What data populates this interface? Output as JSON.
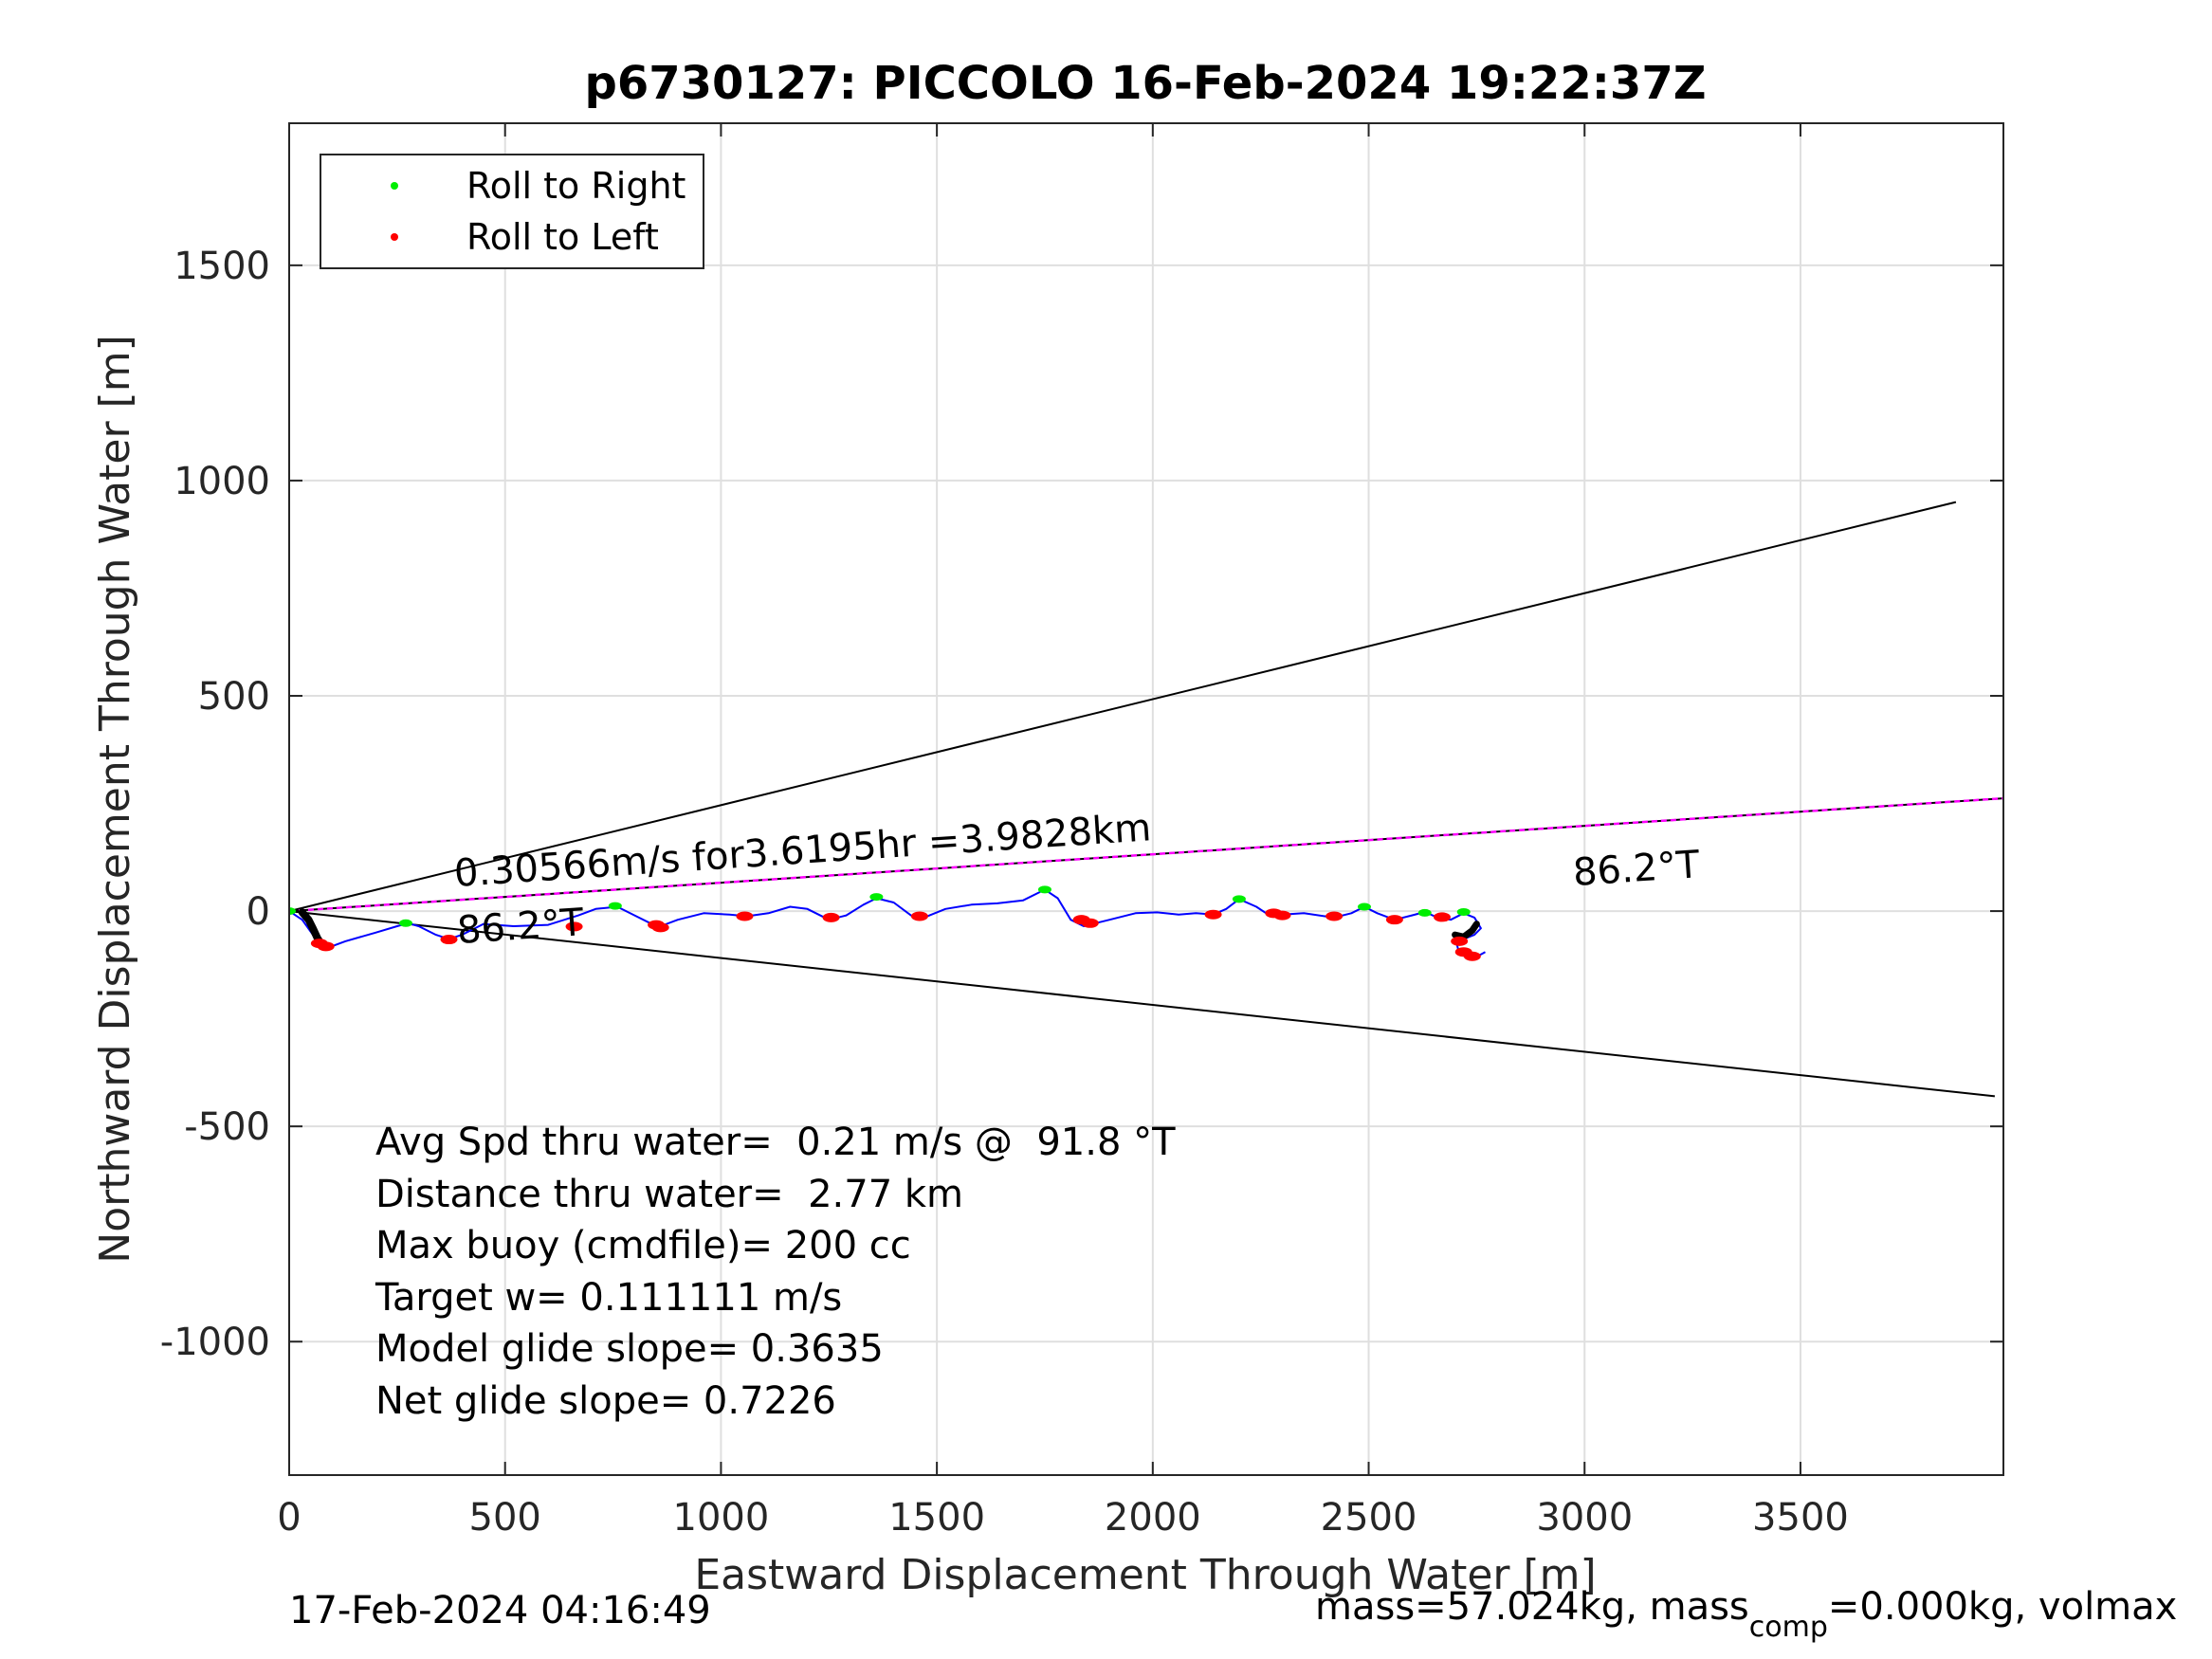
{
  "chart_data": {
    "type": "line",
    "title": "p6730127: PICCOLO 16-Feb-2024 19:22:37Z",
    "xlabel": "Eastward Displacement Through Water [m]",
    "ylabel": "Northward Displacement Through Water [m]",
    "xlim": [
      0,
      3970
    ],
    "ylim": [
      -1310,
      1830
    ],
    "xticks": [
      0,
      500,
      1000,
      1500,
      2000,
      2500,
      3000,
      3500
    ],
    "yticks": [
      1500,
      1000,
      500,
      0,
      -500,
      -1000
    ],
    "grid": true,
    "legend_position": "top-left",
    "colors": {
      "track": "#0000ff",
      "roll_right": "#00ee00",
      "roll_left": "#ff0000",
      "bearing_line": "#ff00ff",
      "cone": "#000000",
      "thick_segment": "#000000"
    },
    "legend": [
      {
        "label": "Roll to Right",
        "color": "#00ee00"
      },
      {
        "label": "Roll to Left",
        "color": "#ff0000"
      }
    ],
    "track": {
      "x": [
        0,
        30,
        55,
        75,
        90,
        130,
        200,
        250,
        275,
        300,
        340,
        370,
        400,
        450,
        520,
        600,
        670,
        710,
        760,
        800,
        840,
        860,
        900,
        960,
        1020,
        1060,
        1110,
        1160,
        1200,
        1250,
        1290,
        1330,
        1360,
        1400,
        1440,
        1470,
        1520,
        1580,
        1640,
        1700,
        1750,
        1780,
        1810,
        1840,
        1860,
        1900,
        1960,
        2010,
        2060,
        2100,
        2140,
        2170,
        2200,
        2240,
        2270,
        2300,
        2350,
        2420,
        2460,
        2490,
        2520,
        2560,
        2600,
        2630,
        2660,
        2690,
        2720,
        2745,
        2760,
        2745,
        2720,
        2705,
        2710,
        2730,
        2752,
        2770
      ],
      "y": [
        0,
        -20,
        -55,
        -78,
        -85,
        -70,
        -50,
        -35,
        -28,
        -35,
        -55,
        -65,
        -55,
        -30,
        -35,
        -32,
        -10,
        5,
        10,
        -10,
        -30,
        -35,
        -20,
        -5,
        -8,
        -12,
        -5,
        10,
        5,
        -20,
        -10,
        15,
        30,
        20,
        -10,
        -15,
        5,
        15,
        18,
        25,
        50,
        30,
        -20,
        -35,
        -30,
        -20,
        -5,
        -3,
        -8,
        -5,
        -8,
        5,
        28,
        10,
        -10,
        -8,
        -5,
        -15,
        -5,
        10,
        -5,
        -20,
        -10,
        -2,
        -15,
        -20,
        -5,
        -15,
        -40,
        -55,
        -65,
        -80,
        -100,
        -108,
        -105,
        -95
      ]
    },
    "roll_right": {
      "x": [
        0,
        270,
        755,
        1360,
        1750,
        2200,
        2490,
        2630,
        2720
      ],
      "y": [
        0,
        -28,
        12,
        33,
        50,
        28,
        10,
        -4,
        -2
      ]
    },
    "roll_left": {
      "x": [
        70,
        85,
        370,
        660,
        850,
        860,
        1055,
        1255,
        1460,
        1835,
        1855,
        2140,
        2280,
        2300,
        2420,
        2560,
        2670,
        2710,
        2720,
        2740
      ],
      "y": [
        -75,
        -82,
        -66,
        -36,
        -32,
        -38,
        -12,
        -15,
        -12,
        -20,
        -28,
        -8,
        -5,
        -10,
        -12,
        -20,
        -14,
        -70,
        -95,
        -105
      ]
    },
    "thick_segment": {
      "x": [
        30,
        45,
        55,
        65,
        75
      ],
      "y": [
        -3,
        -20,
        -40,
        -62,
        -78
      ]
    },
    "thick_segment_end": {
      "x": [
        2700,
        2720,
        2740,
        2750
      ],
      "y": [
        -55,
        -60,
        -45,
        -30
      ]
    },
    "bearing_line": {
      "x": [
        0,
        3970
      ],
      "y": [
        0,
        262
      ]
    },
    "cone_upper": {
      "x": [
        0,
        3860
      ],
      "y": [
        0,
        950
      ]
    },
    "cone_lower": {
      "x": [
        0,
        3950
      ],
      "y": [
        0,
        -430
      ]
    },
    "annotations": {
      "speed_label": "0.30566m/s for3.6195hr =3.9828km",
      "heading_far": "86.2°T",
      "heading_near": "86.2°T"
    },
    "stats": [
      "Avg Spd thru water=  0.21 m/s @  91.8 °T",
      "Distance thru water=  2.77 km",
      "Max buoy (cmdfile)= 200 cc",
      "Target w= 0.111111 m/s",
      "Model glide slope= 0.3635",
      "Net glide slope= 0.7226"
    ]
  },
  "footer": {
    "timestamp": "17-Feb-2024 04:16:49",
    "mass_prefix": "mass=57.024kg, mass",
    "mass_sub": "comp",
    "mass_suffix": "=0.000kg, volmax"
  }
}
